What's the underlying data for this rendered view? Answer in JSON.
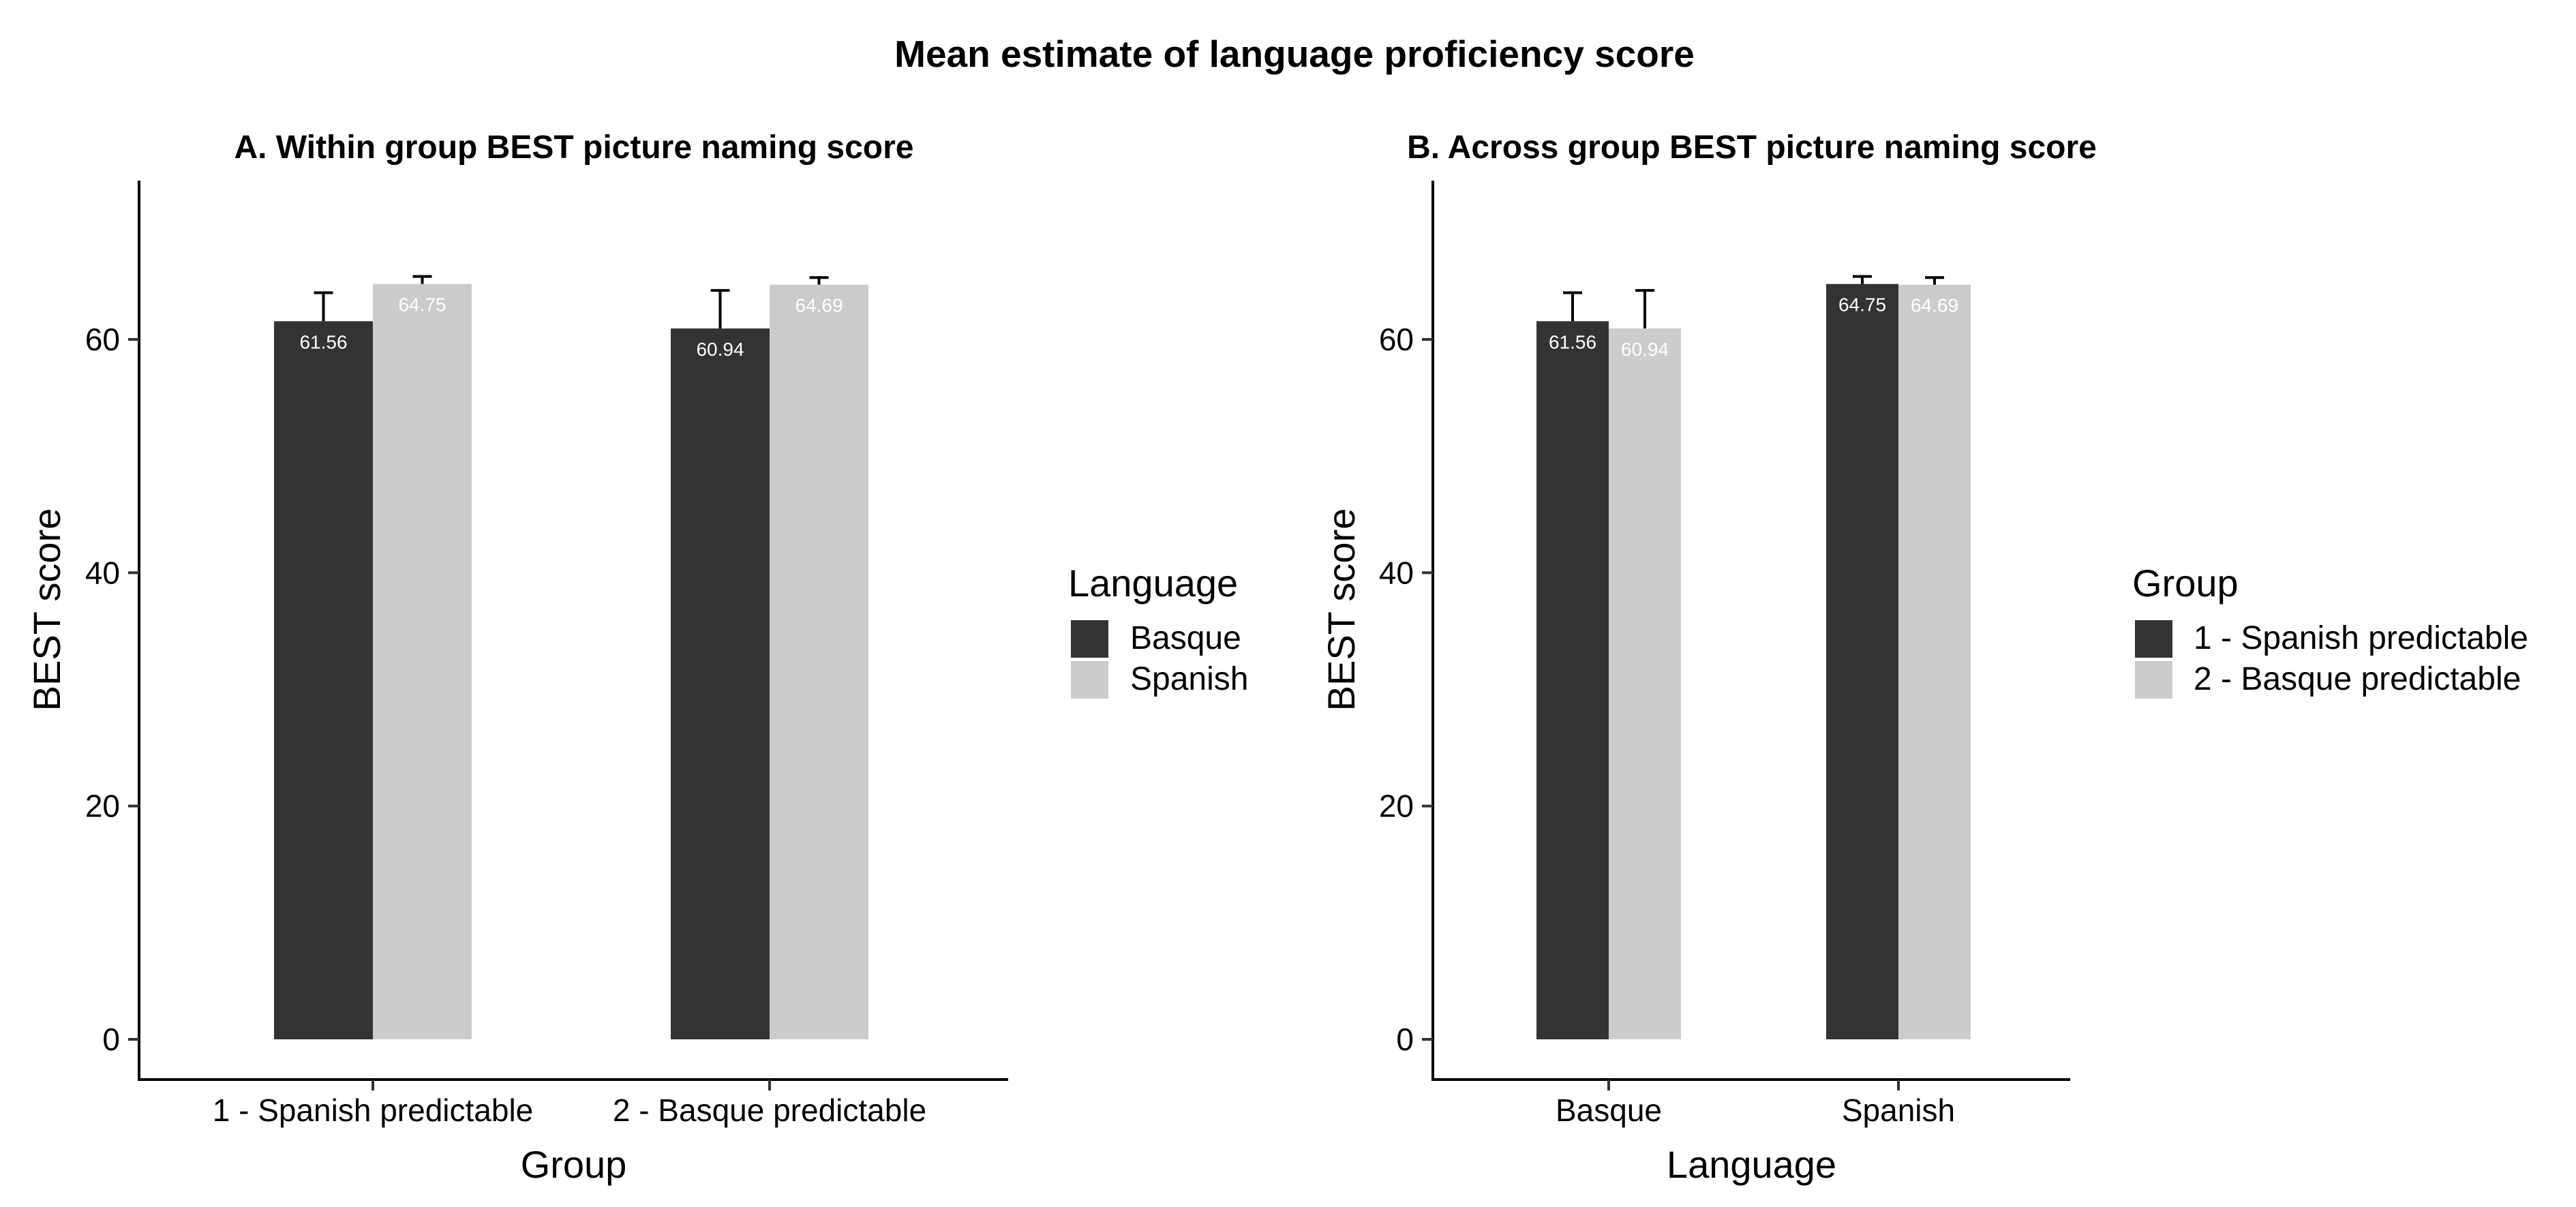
{
  "figure_title": "Mean estimate of language proficiency score",
  "chart_data": [
    {
      "type": "bar",
      "title": "A. Within group BEST picture naming score",
      "xlabel": "Group",
      "ylabel": "BEST score",
      "categories": [
        "1 - Spanish predictable",
        "2 - Basque predictable"
      ],
      "series": [
        {
          "name": "Basque",
          "color": "#333333",
          "label_color": "#ffffff",
          "values": [
            61.56,
            60.94
          ],
          "labels": [
            "61.56",
            "60.94"
          ],
          "error_upper": [
            64.0,
            64.2
          ]
        },
        {
          "name": "Spanish",
          "color": "#cccccc",
          "label_color": "#ffffff",
          "values": [
            64.75,
            64.69
          ],
          "labels": [
            "64.75",
            "64.69"
          ],
          "error_upper": [
            65.4,
            65.3
          ]
        }
      ],
      "ylim": [
        0,
        70
      ],
      "yticks": [
        0,
        20,
        40,
        60
      ],
      "grid": false,
      "legend": {
        "title": "Language",
        "position": "right",
        "entries": [
          "Basque",
          "Spanish"
        ]
      }
    },
    {
      "type": "bar",
      "title": "B. Across group BEST picture naming score",
      "xlabel": "Language",
      "ylabel": "BEST score",
      "categories": [
        "Basque",
        "Spanish"
      ],
      "series": [
        {
          "name": "1 - Spanish predictable",
          "color": "#333333",
          "label_color": "#ffffff",
          "values": [
            61.56,
            64.75
          ],
          "labels": [
            "61.56",
            "64.75"
          ],
          "error_upper": [
            64.0,
            65.4
          ]
        },
        {
          "name": "2 - Basque predictable",
          "color": "#cccccc",
          "label_color": "#ffffff",
          "values": [
            60.94,
            64.69
          ],
          "labels": [
            "60.94",
            "64.69"
          ],
          "error_upper": [
            64.2,
            65.3
          ]
        }
      ],
      "ylim": [
        0,
        70
      ],
      "yticks": [
        0,
        20,
        40,
        60
      ],
      "grid": false,
      "legend": {
        "title": "Group",
        "position": "right",
        "entries": [
          "1 - Spanish predictable",
          "2 - Basque predictable"
        ]
      }
    }
  ]
}
